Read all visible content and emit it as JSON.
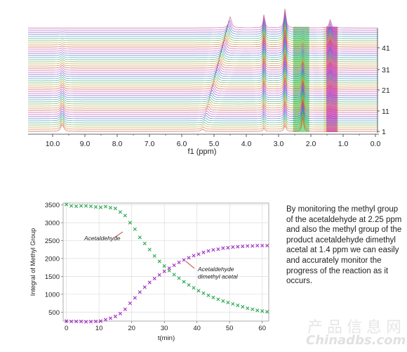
{
  "chart_data": [
    {
      "type": "line",
      "title": "",
      "xlabel": "f1 (ppm)",
      "xlim": [
        10.6,
        0.0
      ],
      "x_ticks": [
        "10.0",
        "9.0",
        "8.0",
        "7.0",
        "6.0",
        "5.0",
        "4.0",
        "3.0",
        "2.0",
        "1.0",
        "0.0"
      ],
      "y_ticks_right": [
        "41",
        "31",
        "21",
        "11",
        "1"
      ],
      "spectrum_count": 50,
      "peaks_ppm": [
        9.7,
        5.1,
        3.45,
        2.8,
        2.25,
        1.4
      ],
      "highlight_bands_ppm": [
        [
          2.05,
          2.55
        ],
        [
          1.15,
          1.6
        ]
      ],
      "highlight_colors": [
        "#5ad06a",
        "#d23cc8",
        "#e9e6a6"
      ],
      "grid": false
    },
    {
      "type": "scatter",
      "title": "",
      "xlabel": "t(min)",
      "ylabel": "Integral of Methyl Group",
      "xlim": [
        -1,
        62
      ],
      "ylim": [
        250,
        3550
      ],
      "x_ticks": [
        0,
        10,
        20,
        30,
        40,
        50,
        60
      ],
      "y_ticks": [
        500,
        1000,
        1500,
        2000,
        2500,
        3000,
        3500
      ],
      "grid": true,
      "x": [
        0,
        1.5,
        3,
        4.5,
        6,
        7.5,
        9,
        10.5,
        12,
        13.5,
        15,
        16.5,
        18,
        19.5,
        21,
        22.5,
        24,
        25.5,
        27,
        28.5,
        30,
        31.5,
        33,
        34.5,
        36,
        37.5,
        39,
        40.5,
        42,
        43.5,
        45,
        46.5,
        48,
        49.5,
        51,
        52.5,
        54,
        55.5,
        57,
        58.5,
        60,
        61.5
      ],
      "series": [
        {
          "name": "Acetaldehyde",
          "color": "#2aa852",
          "values": [
            3510,
            3470,
            3460,
            3470,
            3470,
            3460,
            3440,
            3430,
            3450,
            3420,
            3400,
            3300,
            3200,
            3000,
            2820,
            2590,
            2420,
            2250,
            2070,
            1920,
            1790,
            1660,
            1550,
            1450,
            1350,
            1260,
            1180,
            1100,
            1030,
            970,
            910,
            860,
            810,
            770,
            730,
            690,
            650,
            610,
            580,
            550,
            530,
            510
          ]
        },
        {
          "name": "Acetaldehyde\ndimethyl acetal",
          "color": "#a02cc4",
          "values": [
            250,
            240,
            240,
            240,
            230,
            235,
            240,
            250,
            290,
            330,
            380,
            460,
            580,
            750,
            900,
            1060,
            1200,
            1330,
            1440,
            1540,
            1640,
            1730,
            1810,
            1890,
            1960,
            2020,
            2080,
            2120,
            2170,
            2210,
            2240,
            2260,
            2290,
            2300,
            2320,
            2330,
            2340,
            2350,
            2350,
            2360,
            2360,
            2360
          ]
        }
      ]
    }
  ],
  "description": "By monitoring the methyl group of the acetaldehyde at 2.25 ppm and also the methyl group of the product acetaldehyde dimethyl acetal at 1.4 ppm we can easily and accurately monitor the progress of the reaction as it occurs.",
  "watermark_cn": "产品信息网",
  "watermark_en": "Chinadbs.com"
}
